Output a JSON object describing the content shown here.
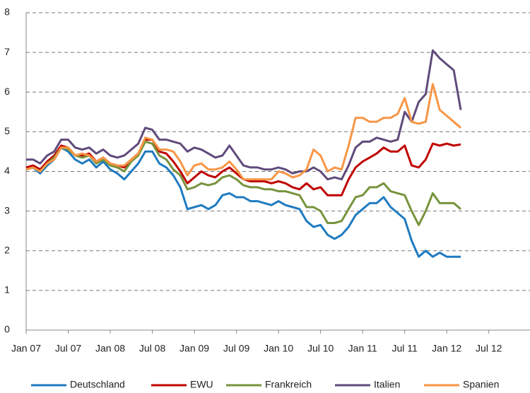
{
  "chart_data": {
    "type": "line",
    "categories": [
      "Jan 07",
      null,
      null,
      null,
      null,
      null,
      "Jul 07",
      null,
      null,
      null,
      null,
      null,
      "Jan 08",
      null,
      null,
      null,
      null,
      null,
      "Jul 08",
      null,
      null,
      null,
      null,
      null,
      "Jan 09",
      null,
      null,
      null,
      null,
      null,
      "Jul 09",
      null,
      null,
      null,
      null,
      null,
      "Jan 10",
      null,
      null,
      null,
      null,
      null,
      "Jul 10",
      null,
      null,
      null,
      null,
      null,
      "Jan 11",
      null,
      null,
      null,
      null,
      null,
      "Jul 11",
      null,
      null,
      null,
      null,
      null,
      "Jan 12",
      null,
      null,
      null,
      null,
      null,
      "Jul 12",
      null,
      null,
      null,
      null,
      null
    ],
    "ylim": [
      0,
      8
    ],
    "yticks": [
      0,
      1,
      2,
      3,
      4,
      5,
      6,
      7,
      8
    ],
    "grid": true,
    "series": [
      {
        "name": "Deutschland",
        "color": "#1f7bc1",
        "values": [
          4.05,
          4.1,
          3.95,
          4.15,
          4.3,
          4.6,
          4.5,
          4.3,
          4.2,
          4.3,
          4.1,
          4.25,
          4.05,
          3.95,
          3.8,
          4.0,
          4.2,
          4.5,
          4.5,
          4.2,
          4.1,
          3.9,
          3.6,
          3.05,
          3.1,
          3.15,
          3.05,
          3.15,
          3.4,
          3.45,
          3.35,
          3.35,
          3.25,
          3.25,
          3.2,
          3.15,
          3.25,
          3.15,
          3.1,
          3.05,
          2.75,
          2.6,
          2.65,
          2.4,
          2.3,
          2.4,
          2.6,
          2.9,
          3.05,
          3.2,
          3.2,
          3.35,
          3.1,
          2.95,
          2.8,
          2.25,
          1.85,
          2.0,
          1.85,
          1.95,
          1.85,
          1.85,
          1.85,
          null,
          null,
          null,
          null,
          null,
          null,
          null,
          null,
          null
        ]
      },
      {
        "name": "EWU",
        "color": "#c00000",
        "values": [
          4.1,
          4.15,
          4.05,
          4.25,
          4.4,
          4.65,
          4.6,
          4.4,
          4.4,
          4.45,
          4.25,
          4.35,
          4.2,
          4.15,
          4.1,
          4.3,
          4.45,
          4.8,
          4.8,
          4.5,
          4.45,
          4.25,
          4.0,
          3.7,
          3.85,
          4.0,
          3.9,
          3.85,
          4.0,
          4.1,
          3.95,
          3.8,
          3.75,
          3.75,
          3.75,
          3.7,
          3.75,
          3.7,
          3.6,
          3.55,
          3.7,
          3.55,
          3.6,
          3.4,
          3.4,
          3.4,
          3.8,
          4.1,
          4.25,
          4.35,
          4.45,
          4.6,
          4.5,
          4.5,
          4.65,
          4.15,
          4.1,
          4.3,
          4.7,
          4.65,
          4.7,
          4.65,
          4.68,
          null,
          null,
          null,
          null,
          null,
          null,
          null,
          null,
          null
        ]
      },
      {
        "name": "Frankreich",
        "color": "#77933c",
        "values": [
          4.05,
          4.1,
          4.0,
          4.2,
          4.35,
          4.6,
          4.55,
          4.4,
          4.35,
          4.4,
          4.2,
          4.3,
          4.15,
          4.1,
          4.0,
          4.25,
          4.4,
          4.75,
          4.7,
          4.4,
          4.3,
          4.05,
          3.9,
          3.55,
          3.6,
          3.7,
          3.65,
          3.7,
          3.85,
          3.9,
          3.8,
          3.65,
          3.6,
          3.6,
          3.55,
          3.55,
          3.5,
          3.5,
          3.45,
          3.4,
          3.1,
          3.1,
          3.0,
          2.7,
          2.7,
          2.75,
          3.05,
          3.35,
          3.4,
          3.6,
          3.6,
          3.7,
          3.5,
          3.45,
          3.4,
          3.0,
          2.65,
          3.0,
          3.45,
          3.2,
          3.2,
          3.2,
          3.05,
          null,
          null,
          null,
          null,
          null,
          null,
          null,
          null,
          null
        ]
      },
      {
        "name": "Italien",
        "color": "#604a7b",
        "values": [
          4.3,
          4.3,
          4.2,
          4.4,
          4.5,
          4.8,
          4.8,
          4.6,
          4.55,
          4.6,
          4.45,
          4.55,
          4.4,
          4.35,
          4.4,
          4.55,
          4.7,
          5.1,
          5.05,
          4.8,
          4.8,
          4.75,
          4.7,
          4.5,
          4.6,
          4.55,
          4.45,
          4.35,
          4.4,
          4.65,
          4.4,
          4.15,
          4.1,
          4.1,
          4.05,
          4.05,
          4.1,
          4.05,
          3.95,
          4.0,
          4.0,
          4.1,
          4.0,
          3.8,
          3.85,
          3.8,
          4.15,
          4.6,
          4.75,
          4.75,
          4.85,
          4.8,
          4.75,
          4.8,
          5.5,
          5.25,
          5.75,
          5.95,
          7.05,
          6.85,
          6.7,
          6.55,
          5.55,
          null,
          null,
          null,
          null,
          null,
          null,
          null,
          null,
          null
        ]
      },
      {
        "name": "Spanien",
        "color": "#f79646",
        "values": [
          4.05,
          4.1,
          4.0,
          4.2,
          4.3,
          4.6,
          4.6,
          4.4,
          4.45,
          4.4,
          4.25,
          4.35,
          4.2,
          4.15,
          4.15,
          4.3,
          4.45,
          4.85,
          4.8,
          4.55,
          4.55,
          4.5,
          4.25,
          3.9,
          4.15,
          4.2,
          4.05,
          4.05,
          4.1,
          4.25,
          4.05,
          3.8,
          3.8,
          3.8,
          3.8,
          3.8,
          4.0,
          3.95,
          3.85,
          3.9,
          4.05,
          4.55,
          4.4,
          4.0,
          4.1,
          4.05,
          4.65,
          5.35,
          5.35,
          5.25,
          5.25,
          5.35,
          5.35,
          5.45,
          5.85,
          5.25,
          5.2,
          5.25,
          6.2,
          5.55,
          5.4,
          5.25,
          5.1,
          null,
          null,
          null,
          null,
          null,
          null,
          null,
          null,
          null
        ]
      }
    ]
  }
}
